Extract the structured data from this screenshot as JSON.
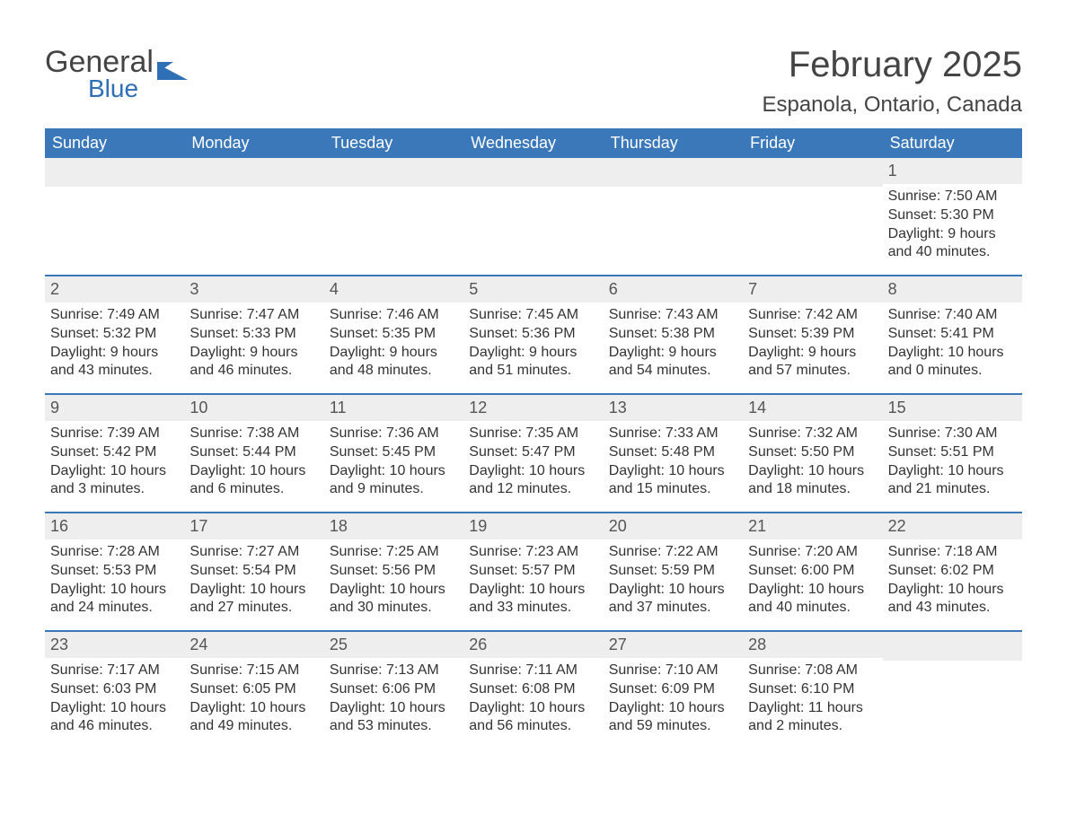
{
  "logo": {
    "text_general": "General",
    "text_blue": "Blue",
    "mark_color": "#2f6fb5",
    "text_color": "#444444"
  },
  "title": "February 2025",
  "location": "Espanola, Ontario, Canada",
  "colors": {
    "header_bg": "#3b78b9",
    "header_fg": "#ffffff",
    "week_divider": "#3b78b9",
    "daynum_bg": "#eeeeee",
    "text": "#333333",
    "page_bg": "#ffffff"
  },
  "weekdays": [
    "Sunday",
    "Monday",
    "Tuesday",
    "Wednesday",
    "Thursday",
    "Friday",
    "Saturday"
  ],
  "leading_blanks": 6,
  "trailing_blanks": 1,
  "num_days": 28,
  "days": [
    {
      "n": 1,
      "sunrise": "7:50 AM",
      "sunset": "5:30 PM",
      "daylight": "9 hours and 40 minutes."
    },
    {
      "n": 2,
      "sunrise": "7:49 AM",
      "sunset": "5:32 PM",
      "daylight": "9 hours and 43 minutes."
    },
    {
      "n": 3,
      "sunrise": "7:47 AM",
      "sunset": "5:33 PM",
      "daylight": "9 hours and 46 minutes."
    },
    {
      "n": 4,
      "sunrise": "7:46 AM",
      "sunset": "5:35 PM",
      "daylight": "9 hours and 48 minutes."
    },
    {
      "n": 5,
      "sunrise": "7:45 AM",
      "sunset": "5:36 PM",
      "daylight": "9 hours and 51 minutes."
    },
    {
      "n": 6,
      "sunrise": "7:43 AM",
      "sunset": "5:38 PM",
      "daylight": "9 hours and 54 minutes."
    },
    {
      "n": 7,
      "sunrise": "7:42 AM",
      "sunset": "5:39 PM",
      "daylight": "9 hours and 57 minutes."
    },
    {
      "n": 8,
      "sunrise": "7:40 AM",
      "sunset": "5:41 PM",
      "daylight": "10 hours and 0 minutes."
    },
    {
      "n": 9,
      "sunrise": "7:39 AM",
      "sunset": "5:42 PM",
      "daylight": "10 hours and 3 minutes."
    },
    {
      "n": 10,
      "sunrise": "7:38 AM",
      "sunset": "5:44 PM",
      "daylight": "10 hours and 6 minutes."
    },
    {
      "n": 11,
      "sunrise": "7:36 AM",
      "sunset": "5:45 PM",
      "daylight": "10 hours and 9 minutes."
    },
    {
      "n": 12,
      "sunrise": "7:35 AM",
      "sunset": "5:47 PM",
      "daylight": "10 hours and 12 minutes."
    },
    {
      "n": 13,
      "sunrise": "7:33 AM",
      "sunset": "5:48 PM",
      "daylight": "10 hours and 15 minutes."
    },
    {
      "n": 14,
      "sunrise": "7:32 AM",
      "sunset": "5:50 PM",
      "daylight": "10 hours and 18 minutes."
    },
    {
      "n": 15,
      "sunrise": "7:30 AM",
      "sunset": "5:51 PM",
      "daylight": "10 hours and 21 minutes."
    },
    {
      "n": 16,
      "sunrise": "7:28 AM",
      "sunset": "5:53 PM",
      "daylight": "10 hours and 24 minutes."
    },
    {
      "n": 17,
      "sunrise": "7:27 AM",
      "sunset": "5:54 PM",
      "daylight": "10 hours and 27 minutes."
    },
    {
      "n": 18,
      "sunrise": "7:25 AM",
      "sunset": "5:56 PM",
      "daylight": "10 hours and 30 minutes."
    },
    {
      "n": 19,
      "sunrise": "7:23 AM",
      "sunset": "5:57 PM",
      "daylight": "10 hours and 33 minutes."
    },
    {
      "n": 20,
      "sunrise": "7:22 AM",
      "sunset": "5:59 PM",
      "daylight": "10 hours and 37 minutes."
    },
    {
      "n": 21,
      "sunrise": "7:20 AM",
      "sunset": "6:00 PM",
      "daylight": "10 hours and 40 minutes."
    },
    {
      "n": 22,
      "sunrise": "7:18 AM",
      "sunset": "6:02 PM",
      "daylight": "10 hours and 43 minutes."
    },
    {
      "n": 23,
      "sunrise": "7:17 AM",
      "sunset": "6:03 PM",
      "daylight": "10 hours and 46 minutes."
    },
    {
      "n": 24,
      "sunrise": "7:15 AM",
      "sunset": "6:05 PM",
      "daylight": "10 hours and 49 minutes."
    },
    {
      "n": 25,
      "sunrise": "7:13 AM",
      "sunset": "6:06 PM",
      "daylight": "10 hours and 53 minutes."
    },
    {
      "n": 26,
      "sunrise": "7:11 AM",
      "sunset": "6:08 PM",
      "daylight": "10 hours and 56 minutes."
    },
    {
      "n": 27,
      "sunrise": "7:10 AM",
      "sunset": "6:09 PM",
      "daylight": "10 hours and 59 minutes."
    },
    {
      "n": 28,
      "sunrise": "7:08 AM",
      "sunset": "6:10 PM",
      "daylight": "11 hours and 2 minutes."
    }
  ],
  "labels": {
    "sunrise_prefix": "Sunrise: ",
    "sunset_prefix": "Sunset: ",
    "daylight_prefix": "Daylight: "
  }
}
